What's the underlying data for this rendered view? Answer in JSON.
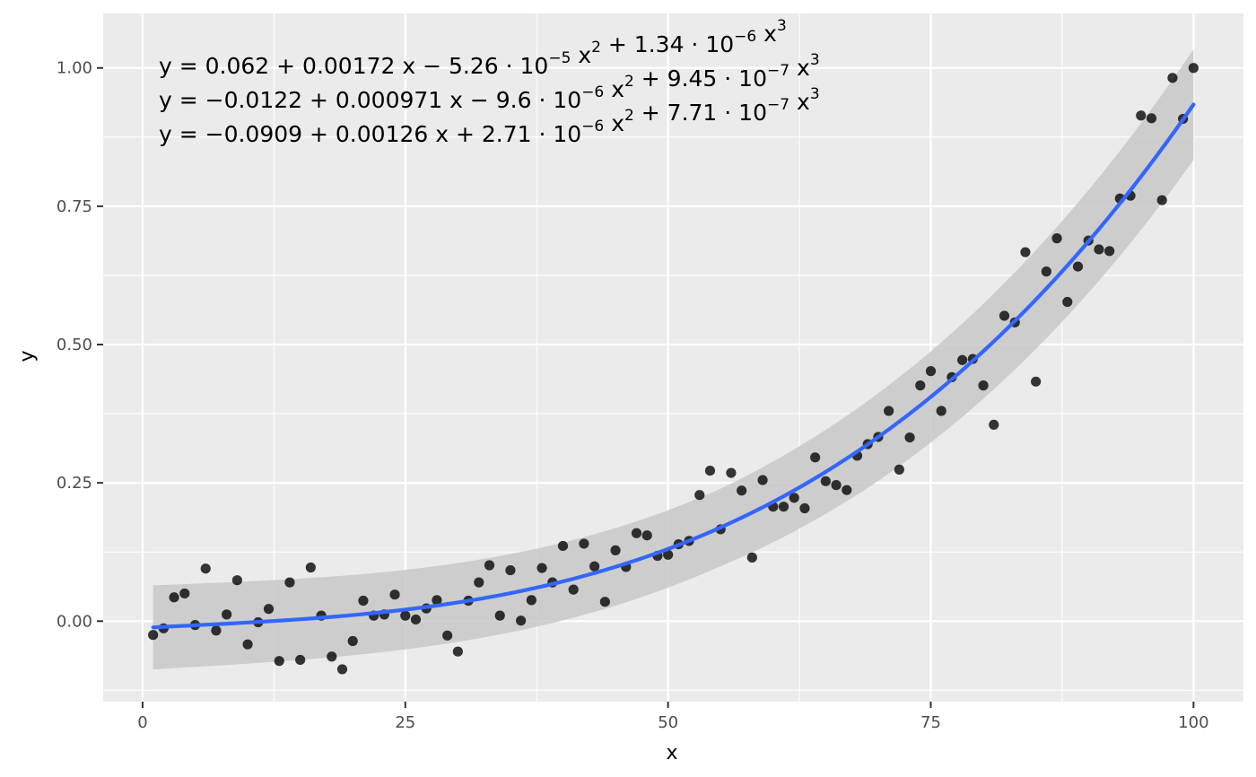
{
  "chart_data": {
    "type": "scatter",
    "xlabel": "x",
    "ylabel": "y",
    "xlim": [
      -3.75,
      104.75
    ],
    "ylim": [
      -0.1455,
      1.0985
    ],
    "x_ticks": [
      0,
      25,
      50,
      75,
      100
    ],
    "x_tick_labels": [
      "0",
      "25",
      "50",
      "75",
      "100"
    ],
    "y_ticks": [
      0,
      0.25,
      0.5,
      0.75,
      1.0
    ],
    "y_tick_labels": [
      "0.00",
      "0.25",
      "0.50",
      "0.75",
      "1.00"
    ],
    "grid": true,
    "annotations": [
      {
        "prefix": "y = 0.062 + 0.00172 x − 5.26 · 10",
        "terms": [
          {
            "base": "y = 0.062 + 0.00172 x − 5.26 · 10",
            "exp": "−5"
          },
          {
            "base": " x",
            "exp": "2"
          },
          {
            "base": " + 1.34 · 10",
            "exp": "−6"
          },
          {
            "base": " x",
            "exp": "3"
          }
        ]
      },
      {
        "terms": [
          {
            "base": "y = −0.0122 + 0.000971 x − 9.6 · 10",
            "exp": "−6"
          },
          {
            "base": " x",
            "exp": "2"
          },
          {
            "base": " + 9.45 · 10",
            "exp": "−7"
          },
          {
            "base": " x",
            "exp": "3"
          }
        ]
      },
      {
        "terms": [
          {
            "base": "y = −0.0909 + 0.00126 x + 2.71 · 10",
            "exp": "−6"
          },
          {
            "base": " x",
            "exp": "2"
          },
          {
            "base": " + 7.71 · 10",
            "exp": "−7"
          },
          {
            "base": " x",
            "exp": "3"
          }
        ]
      }
    ],
    "points": {
      "x": [
        1,
        2,
        3,
        4,
        5,
        6,
        7,
        8,
        9,
        10,
        11,
        12,
        13,
        14,
        15,
        16,
        17,
        18,
        19,
        20,
        21,
        22,
        23,
        24,
        25,
        26,
        27,
        28,
        29,
        30,
        31,
        32,
        33,
        34,
        35,
        36,
        37,
        38,
        39,
        40,
        41,
        42,
        43,
        44,
        45,
        46,
        47,
        48,
        49,
        50,
        51,
        52,
        53,
        54,
        55,
        56,
        57,
        58,
        59,
        60,
        61,
        62,
        63,
        64,
        65,
        66,
        67,
        68,
        69,
        70,
        71,
        72,
        73,
        74,
        75,
        76,
        77,
        78,
        79,
        80,
        81,
        82,
        83,
        84,
        85,
        86,
        87,
        88,
        89,
        90,
        91,
        92,
        93,
        94,
        95,
        96,
        97,
        98,
        99,
        100
      ],
      "y": [
        -0.025,
        -0.013,
        0.043,
        0.05,
        -0.007,
        0.095,
        -0.017,
        0.012,
        0.074,
        -0.042,
        -0.002,
        0.022,
        -0.072,
        0.07,
        -0.07,
        0.097,
        0.01,
        -0.064,
        -0.087,
        -0.036,
        0.037,
        0.01,
        0.012,
        0.048,
        0.01,
        0.003,
        0.023,
        0.038,
        -0.026,
        -0.055,
        0.037,
        0.07,
        0.101,
        0.01,
        0.092,
        0.001,
        0.038,
        0.096,
        0.07,
        0.136,
        0.057,
        0.14,
        0.099,
        0.035,
        0.128,
        0.098,
        0.159,
        0.155,
        0.118,
        0.12,
        0.139,
        0.145,
        0.228,
        0.272,
        0.166,
        0.268,
        0.236,
        0.115,
        0.255,
        0.207,
        0.207,
        0.223,
        0.204,
        0.296,
        0.253,
        0.246,
        0.237,
        0.299,
        0.32,
        0.333,
        0.38,
        0.274,
        0.332,
        0.426,
        0.452,
        0.38,
        0.441,
        0.472,
        0.474,
        0.426,
        0.355,
        0.552,
        0.54,
        0.667,
        0.433,
        0.632,
        0.692,
        0.577,
        0.641,
        0.688,
        0.672,
        0.669,
        0.764,
        0.769,
        0.914,
        0.909,
        0.761,
        0.982,
        0.908,
        1.0
      ]
    },
    "smooth": {
      "coefficients": [
        -0.0122,
        0.000971,
        -9.6e-06,
        9.45e-07
      ],
      "band_lower_coefficients": [
        -0.0909,
        0.00126,
        2.71e-06,
        7.71e-07
      ],
      "band_upper_coefficients": [
        0.062,
        0.00172,
        -5.26e-05,
        1.34e-06
      ],
      "x_range": [
        1,
        100
      ]
    },
    "colors": {
      "panel": "#ebebeb",
      "grid": "#ffffff",
      "point": "#000000",
      "line": "#3366ff",
      "band": "#c8c8c8",
      "tick": "#333333"
    }
  }
}
